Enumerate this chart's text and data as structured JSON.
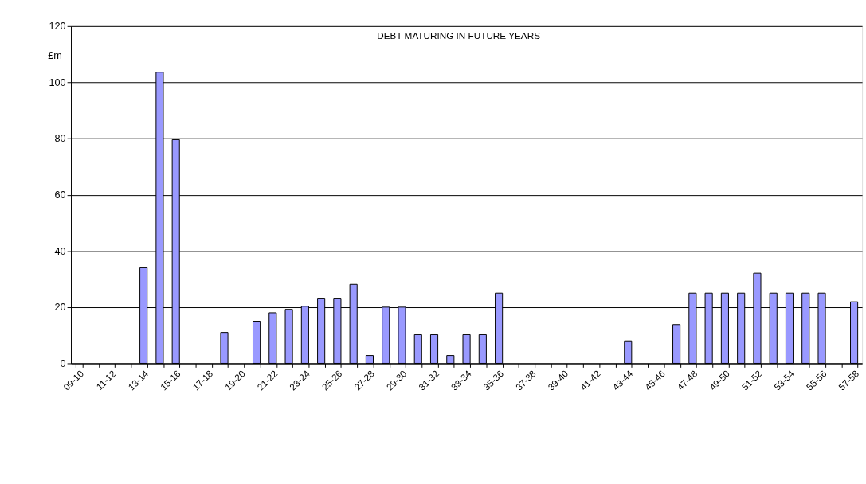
{
  "chart_data": {
    "type": "bar",
    "title": "DEBT MATURING IN FUTURE YEARS",
    "ylabel": "£m",
    "categories": [
      "09-10",
      null,
      "11-12",
      null,
      "13-14",
      null,
      "15-16",
      null,
      "17-18",
      null,
      "19-20",
      null,
      "21-22",
      null,
      "23-24",
      null,
      "25-26",
      null,
      "27-28",
      null,
      "29-30",
      null,
      "31-32",
      null,
      "33-34",
      null,
      "35-36",
      null,
      "37-38",
      null,
      "39-40",
      null,
      "41-42",
      null,
      "43-44",
      null,
      "45-46",
      null,
      "47-48",
      null,
      "49-50",
      null,
      "51-52",
      null,
      "53-54",
      null,
      "55-56",
      null,
      "57-58"
    ],
    "values": [
      null,
      null,
      null,
      null,
      34,
      103.6,
      79.6,
      null,
      null,
      11,
      null,
      15,
      18,
      19.2,
      20.3,
      23.2,
      23.2,
      28.1,
      2.8,
      20,
      20,
      10.2,
      10.2,
      2.8,
      10.2,
      10.2,
      25,
      null,
      null,
      null,
      null,
      null,
      null,
      null,
      8,
      null,
      null,
      13.8,
      25,
      25,
      25,
      25,
      32.1,
      25,
      25,
      25,
      25,
      null,
      21.9
    ],
    "color": "#9999ff",
    "ylim": [
      0,
      120
    ],
    "yticks": [
      0,
      20,
      40,
      60,
      80,
      100,
      120
    ],
    "grid": "y"
  }
}
